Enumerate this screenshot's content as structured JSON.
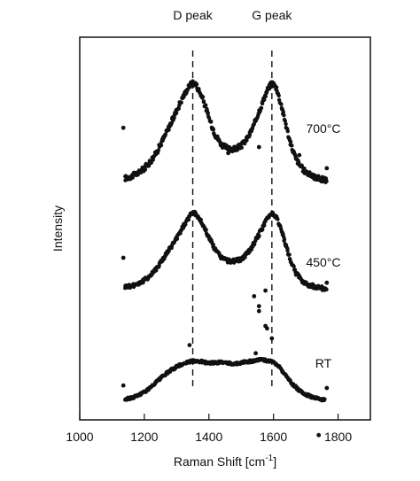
{
  "chart_data": {
    "type": "scatter",
    "title": "",
    "xlabel": "Raman Shift [cm",
    "xlabel_superscript": "-1",
    "xlabel_close": "]",
    "ylabel": "Intensity",
    "xlim": [
      1000,
      1900
    ],
    "xticks": [
      1000,
      1200,
      1400,
      1600,
      1800
    ],
    "yticks_shown": false,
    "reference_lines": [
      {
        "label": "D peak",
        "x": 1350,
        "style": "dashed"
      },
      {
        "label": "G peak",
        "x": 1595,
        "style": "dashed"
      }
    ],
    "series": [
      {
        "name": "700°C",
        "points": [
          [
            1140,
            0.05
          ],
          [
            1160,
            0.07
          ],
          [
            1180,
            0.1
          ],
          [
            1200,
            0.15
          ],
          [
            1220,
            0.22
          ],
          [
            1240,
            0.32
          ],
          [
            1260,
            0.45
          ],
          [
            1280,
            0.58
          ],
          [
            1300,
            0.72
          ],
          [
            1320,
            0.86
          ],
          [
            1340,
            0.97
          ],
          [
            1350,
            1.0
          ],
          [
            1360,
            0.98
          ],
          [
            1380,
            0.85
          ],
          [
            1400,
            0.65
          ],
          [
            1420,
            0.48
          ],
          [
            1440,
            0.38
          ],
          [
            1460,
            0.34
          ],
          [
            1480,
            0.34
          ],
          [
            1500,
            0.37
          ],
          [
            1520,
            0.45
          ],
          [
            1540,
            0.58
          ],
          [
            1560,
            0.75
          ],
          [
            1580,
            0.92
          ],
          [
            1595,
            1.0
          ],
          [
            1610,
            0.94
          ],
          [
            1630,
            0.7
          ],
          [
            1650,
            0.42
          ],
          [
            1670,
            0.24
          ],
          [
            1690,
            0.14
          ],
          [
            1710,
            0.09
          ],
          [
            1730,
            0.06
          ],
          [
            1750,
            0.04
          ],
          [
            1765,
            0.03
          ]
        ],
        "outliers": [
          [
            1135,
            0.55
          ],
          [
            1460,
            0.3
          ],
          [
            1555,
            0.36
          ],
          [
            1680,
            0.28
          ],
          [
            1765,
            0.15
          ]
        ]
      },
      {
        "name": "450°C",
        "points": [
          [
            1140,
            0.05
          ],
          [
            1160,
            0.06
          ],
          [
            1180,
            0.09
          ],
          [
            1200,
            0.13
          ],
          [
            1220,
            0.2
          ],
          [
            1240,
            0.3
          ],
          [
            1260,
            0.42
          ],
          [
            1280,
            0.54
          ],
          [
            1300,
            0.67
          ],
          [
            1320,
            0.82
          ],
          [
            1340,
            0.95
          ],
          [
            1350,
            1.0
          ],
          [
            1360,
            0.98
          ],
          [
            1380,
            0.86
          ],
          [
            1400,
            0.68
          ],
          [
            1420,
            0.52
          ],
          [
            1440,
            0.42
          ],
          [
            1460,
            0.38
          ],
          [
            1480,
            0.38
          ],
          [
            1500,
            0.4
          ],
          [
            1520,
            0.48
          ],
          [
            1540,
            0.6
          ],
          [
            1560,
            0.76
          ],
          [
            1580,
            0.92
          ],
          [
            1595,
            1.0
          ],
          [
            1610,
            0.94
          ],
          [
            1630,
            0.7
          ],
          [
            1650,
            0.42
          ],
          [
            1670,
            0.22
          ],
          [
            1690,
            0.12
          ],
          [
            1710,
            0.07
          ],
          [
            1730,
            0.05
          ],
          [
            1750,
            0.03
          ],
          [
            1765,
            0.02
          ]
        ],
        "outliers": [
          [
            1135,
            0.42
          ],
          [
            1340,
            -0.7
          ],
          [
            1555,
            -0.2
          ],
          [
            1575,
            0.0
          ],
          [
            1765,
            0.1
          ]
        ]
      },
      {
        "name": "RT",
        "points": [
          [
            1140,
            0.02
          ],
          [
            1160,
            0.05
          ],
          [
            1180,
            0.1
          ],
          [
            1200,
            0.17
          ],
          [
            1220,
            0.26
          ],
          [
            1240,
            0.38
          ],
          [
            1260,
            0.5
          ],
          [
            1280,
            0.6
          ],
          [
            1300,
            0.68
          ],
          [
            1320,
            0.74
          ],
          [
            1340,
            0.78
          ],
          [
            1360,
            0.8
          ],
          [
            1380,
            0.78
          ],
          [
            1400,
            0.75
          ],
          [
            1420,
            0.76
          ],
          [
            1440,
            0.77
          ],
          [
            1460,
            0.75
          ],
          [
            1480,
            0.74
          ],
          [
            1500,
            0.76
          ],
          [
            1520,
            0.78
          ],
          [
            1540,
            0.8
          ],
          [
            1560,
            0.82
          ],
          [
            1580,
            0.8
          ],
          [
            1600,
            0.78
          ],
          [
            1620,
            0.66
          ],
          [
            1640,
            0.48
          ],
          [
            1660,
            0.32
          ],
          [
            1680,
            0.2
          ],
          [
            1700,
            0.12
          ],
          [
            1720,
            0.07
          ],
          [
            1740,
            0.03
          ],
          [
            1760,
            0.01
          ]
        ],
        "outliers": [
          [
            1135,
            0.3
          ],
          [
            1540,
            2.1
          ],
          [
            1555,
            1.8
          ],
          [
            1575,
            1.5
          ],
          [
            1595,
            1.25
          ],
          [
            1580,
            1.45
          ],
          [
            1740,
            -0.7
          ],
          [
            1765,
            0.25
          ],
          [
            1545,
            0.95
          ]
        ]
      }
    ]
  }
}
